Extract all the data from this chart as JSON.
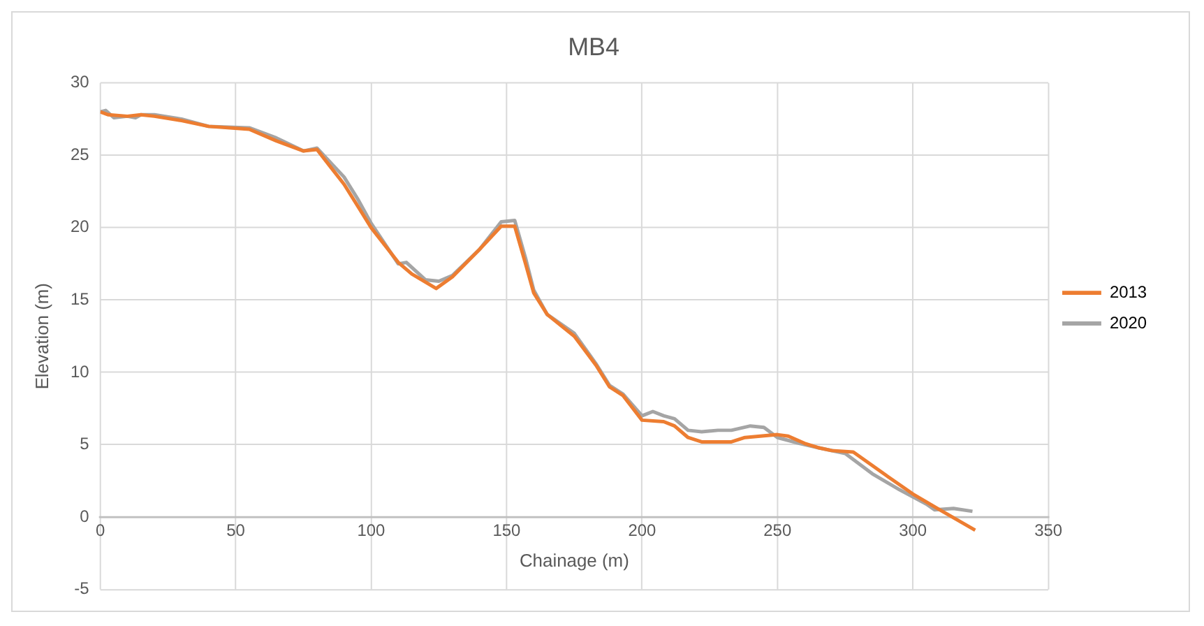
{
  "chart_data": {
    "type": "line",
    "title": "MB4",
    "xlabel": "Chainage (m)",
    "ylabel": "Elevation (m)",
    "xlim": [
      0,
      350
    ],
    "xticks": [
      0,
      50,
      100,
      150,
      200,
      250,
      300,
      350
    ],
    "ylim": [
      -5,
      30
    ],
    "yticks": [
      -5,
      0,
      5,
      10,
      15,
      20,
      25,
      30
    ],
    "grid": true,
    "legend": "right",
    "marker": "none",
    "line_style": "solid",
    "series": [
      {
        "name": "2013",
        "color": "#ed7d31",
        "x": [
          0,
          3,
          10,
          15,
          20,
          30,
          40,
          55,
          65,
          75,
          80,
          85,
          90,
          95,
          100,
          110,
          115,
          124,
          130,
          140,
          148,
          153,
          157,
          160,
          165,
          175,
          183,
          188,
          193,
          200,
          208,
          212,
          217,
          222,
          233,
          238,
          250,
          254,
          260,
          265,
          270,
          278,
          290,
          300,
          310,
          323
        ],
        "values": [
          28,
          27.8,
          27.7,
          27.8,
          27.7,
          27.4,
          27.0,
          26.8,
          26.0,
          25.3,
          25.4,
          24.2,
          23.0,
          21.5,
          20.0,
          17.6,
          16.8,
          15.8,
          16.6,
          18.5,
          20.1,
          20.1,
          17.5,
          15.5,
          14.0,
          12.5,
          10.5,
          9.0,
          8.4,
          6.7,
          6.6,
          6.3,
          5.5,
          5.2,
          5.2,
          5.5,
          5.7,
          5.6,
          5.1,
          4.8,
          4.6,
          4.5,
          2.9,
          1.6,
          0.5,
          -0.9
        ]
      },
      {
        "name": "2020",
        "color": "#a5a5a5",
        "x": [
          0,
          2,
          5,
          10,
          13,
          15,
          20,
          30,
          40,
          55,
          65,
          75,
          80,
          90,
          95,
          100,
          110,
          113,
          120,
          125,
          130,
          140,
          148,
          153,
          157,
          160,
          165,
          175,
          183,
          188,
          193,
          200,
          204,
          208,
          212,
          217,
          222,
          228,
          233,
          240,
          245,
          250,
          258,
          265,
          275,
          285,
          295,
          305,
          308,
          315,
          322
        ],
        "values": [
          28,
          28.1,
          27.6,
          27.7,
          27.6,
          27.8,
          27.8,
          27.5,
          27.0,
          26.9,
          26.2,
          25.3,
          25.5,
          23.5,
          22.0,
          20.3,
          17.5,
          17.6,
          16.4,
          16.3,
          16.7,
          18.5,
          20.4,
          20.5,
          17.9,
          15.7,
          14.0,
          12.7,
          10.6,
          9.1,
          8.5,
          7.0,
          7.3,
          7.0,
          6.8,
          6.0,
          5.9,
          6.0,
          6.0,
          6.3,
          6.2,
          5.5,
          5.1,
          4.8,
          4.4,
          3.0,
          1.9,
          0.9,
          0.5,
          0.6,
          0.4
        ]
      }
    ]
  }
}
